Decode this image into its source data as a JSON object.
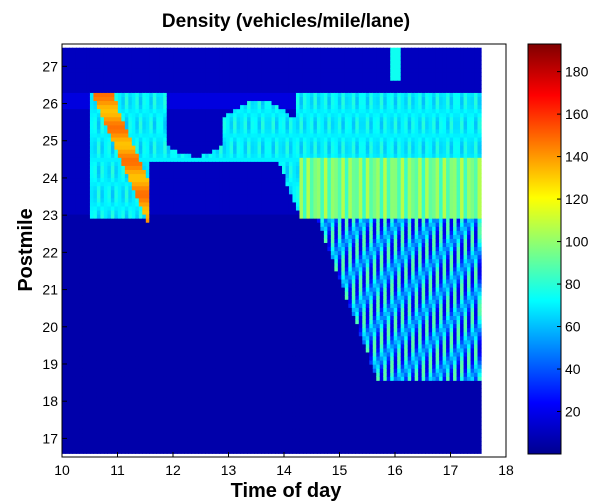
{
  "chart_data": {
    "type": "heatmap",
    "title": "Density (vehicles/mile/lane)",
    "xlabel": "Time of day",
    "ylabel": "Postmile",
    "xlim": [
      10,
      18
    ],
    "ylim": [
      16.5,
      27.6
    ],
    "x_ticks": [
      "10",
      "11",
      "12",
      "13",
      "14",
      "15",
      "16",
      "17",
      "18"
    ],
    "y_ticks": [
      "17",
      "18",
      "19",
      "20",
      "21",
      "22",
      "23",
      "24",
      "25",
      "26",
      "27"
    ],
    "data_x_range": [
      10,
      17.55
    ],
    "data_y_range": [
      16.6,
      27.5
    ],
    "colorbar": {
      "colormap": "jet",
      "range": [
        0,
        193
      ],
      "ticks": [
        "20",
        "40",
        "60",
        "80",
        "100",
        "120",
        "140",
        "160",
        "180"
      ]
    },
    "regions": [
      {
        "desc": "background free flow",
        "density": 12
      },
      {
        "desc": "lower postmile shading",
        "x": [
          10.0,
          17.55
        ],
        "y": [
          16.6,
          23.0
        ],
        "density": 8
      },
      {
        "desc": "band near 26.3",
        "x": [
          10.0,
          17.55
        ],
        "y": [
          25.9,
          26.3
        ],
        "density": 18
      },
      {
        "desc": "congested main wedge",
        "x": [
          10.5,
          17.55
        ],
        "y": [
          22.9,
          26.3
        ],
        "density": 70
      },
      {
        "desc": "severe congestion core",
        "x": [
          10.55,
          11.6
        ],
        "y": [
          22.8,
          26.3
        ],
        "density": 140
      },
      {
        "desc": "upper congested band",
        "x": [
          14.3,
          17.55
        ],
        "y": [
          22.9,
          24.6
        ],
        "density": 95
      },
      {
        "desc": "spillback fan",
        "x": [
          14.6,
          17.55
        ],
        "y": [
          18.6,
          22.9
        ],
        "density": 70
      },
      {
        "desc": "short streak near 27",
        "x": [
          15.9,
          16.1
        ],
        "y": [
          26.6,
          27.5
        ],
        "density": 75
      }
    ]
  }
}
